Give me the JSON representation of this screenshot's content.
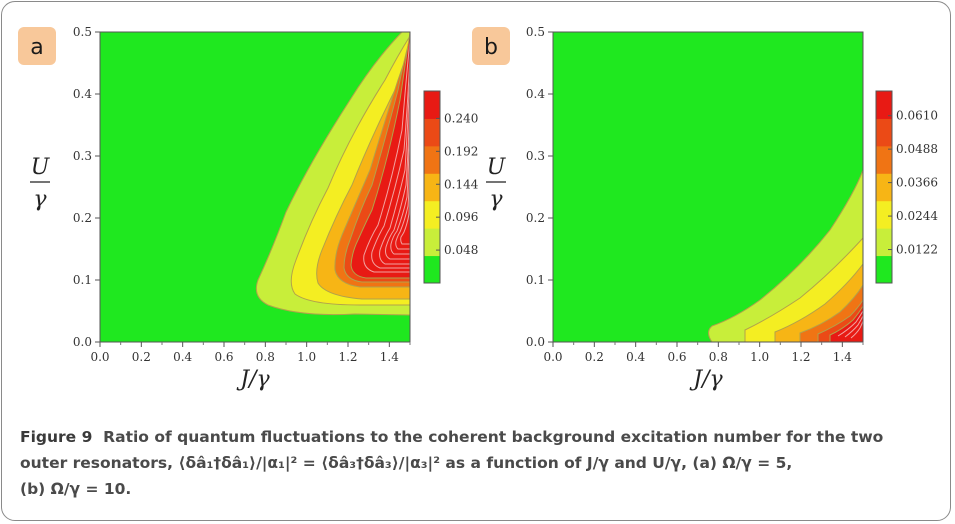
{
  "figure": {
    "label": "Figure 9",
    "caption_line1": "Ratio of quantum fluctuations to the coherent background excitation number for the two",
    "caption_line2": "outer resonators, ⟨δâ₁†δâ₁⟩/|α₁|² = ⟨δâ₃†δâ₃⟩/|α₃|² as a function of J/γ and U/γ, (a) Ω/γ = 5,",
    "caption_line3": "(b) Ω/γ = 10."
  },
  "colors": {
    "green": "#1fe81f",
    "yellowgreen": "#c8ee3a",
    "yellow": "#f4ee22",
    "orange_light": "#f7b515",
    "orange": "#f07414",
    "orange_red": "#eb4a16",
    "red": "#e81a14",
    "panel_letter_bg": "#f8c89a"
  },
  "chart_data": [
    {
      "type": "heatmap",
      "panel": "a",
      "xlabel": "J/γ",
      "ylabel_num": "U",
      "ylabel_den": "γ",
      "xlim": [
        0.0,
        1.5
      ],
      "ylim": [
        0.0,
        0.5
      ],
      "x_ticks": [
        "0.0",
        "0.2",
        "0.4",
        "0.6",
        "0.8",
        "1.0",
        "1.2",
        "1.4"
      ],
      "y_ticks": [
        "0.0",
        "0.1",
        "0.2",
        "0.3",
        "0.4",
        "0.5"
      ],
      "colorbar_ticks": [
        "0.048",
        "0.096",
        "0.144",
        "0.192",
        "0.240"
      ],
      "colorbar_ticks_values": [
        0.048,
        0.096,
        0.144,
        0.192,
        0.24
      ],
      "colorbar_range": [
        0.0,
        0.28
      ]
    },
    {
      "type": "heatmap",
      "panel": "b",
      "xlabel": "J/γ",
      "ylabel_num": "U",
      "ylabel_den": "γ",
      "xlim": [
        0.0,
        1.5
      ],
      "ylim": [
        0.0,
        0.5
      ],
      "x_ticks": [
        "0.0",
        "0.2",
        "0.4",
        "0.6",
        "0.8",
        "1.0",
        "1.2",
        "1.4"
      ],
      "y_ticks": [
        "0.0",
        "0.1",
        "0.2",
        "0.3",
        "0.4",
        "0.5"
      ],
      "colorbar_ticks": [
        "0.0122",
        "0.0244",
        "0.0366",
        "0.0488",
        "0.0610"
      ],
      "colorbar_ticks_values": [
        0.0122,
        0.0244,
        0.0366,
        0.0488,
        0.061
      ],
      "colorbar_range": [
        0.0,
        0.07
      ]
    }
  ]
}
